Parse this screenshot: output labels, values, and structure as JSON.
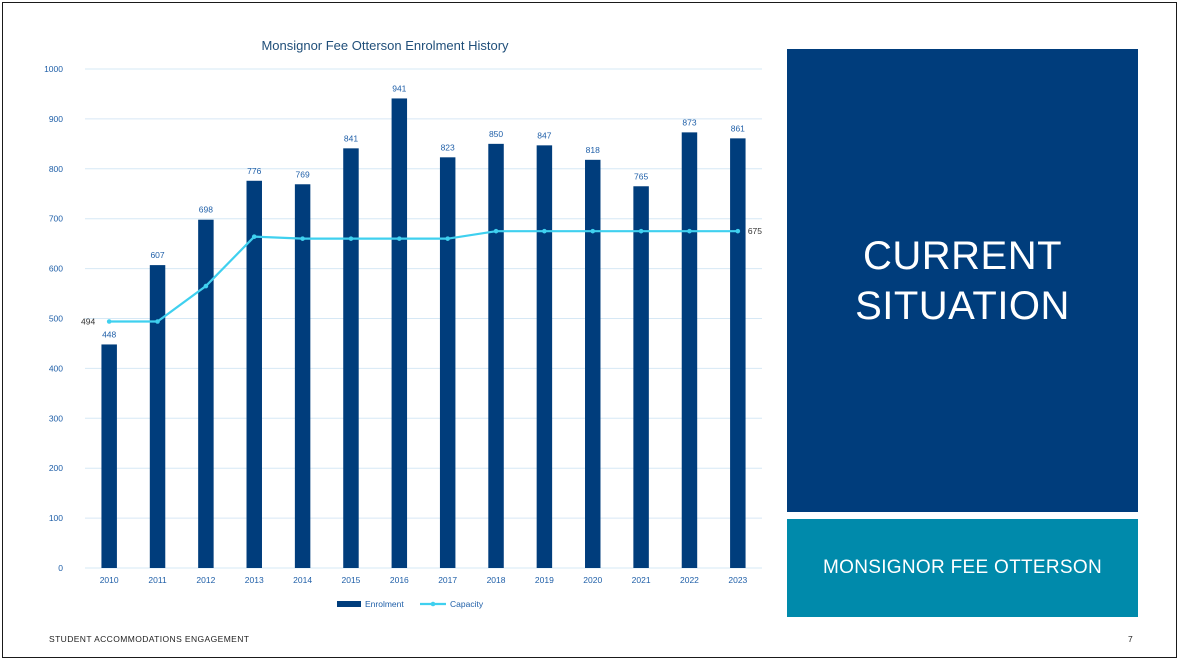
{
  "colors": {
    "enrolment_bar": "#003d7c",
    "capacity_line": "#3fd0ef",
    "title_box": "#003d7c",
    "subtitle_box": "#008aab",
    "axis_text": "#1f5fa8",
    "gridline": "#d6e8f5"
  },
  "slide": {
    "title": "CURRENT\nSITUATION",
    "subtitle": "MONSIGNOR FEE OTTERSON",
    "footer": "STUDENT  ACCOMMODATIONS   ENGAGEMENT",
    "page_number": "7"
  },
  "chart_data": {
    "type": "bar",
    "title": "Monsignor Fee Otterson Enrolment History",
    "categories": [
      "2010",
      "2011",
      "2012",
      "2013",
      "2014",
      "2015",
      "2016",
      "2017",
      "2018",
      "2019",
      "2020",
      "2021",
      "2022",
      "2023"
    ],
    "series": [
      {
        "name": "Enrolment",
        "type": "bar",
        "values": [
          448,
          607,
          698,
          776,
          769,
          841,
          941,
          823,
          850,
          847,
          818,
          765,
          873,
          861
        ]
      },
      {
        "name": "Capacity",
        "type": "line",
        "values": [
          494,
          494,
          565,
          664,
          660,
          660,
          660,
          660,
          675,
          675,
          675,
          675,
          675,
          675
        ]
      }
    ],
    "bar_labels": [
      "448",
      "607",
      "698",
      "776",
      "769",
      "841",
      "941",
      "823",
      "850",
      "847",
      "818",
      "765",
      "873",
      "861"
    ],
    "capacity_labels": [
      {
        "index": 0,
        "text": "494"
      },
      {
        "index": 13,
        "text": "675"
      }
    ],
    "yticks": [
      "0",
      "100",
      "200",
      "300",
      "400",
      "500",
      "600",
      "700",
      "800",
      "900",
      "1000"
    ],
    "ylim": [
      0,
      1000
    ],
    "grid": true,
    "legend": "bottom"
  }
}
